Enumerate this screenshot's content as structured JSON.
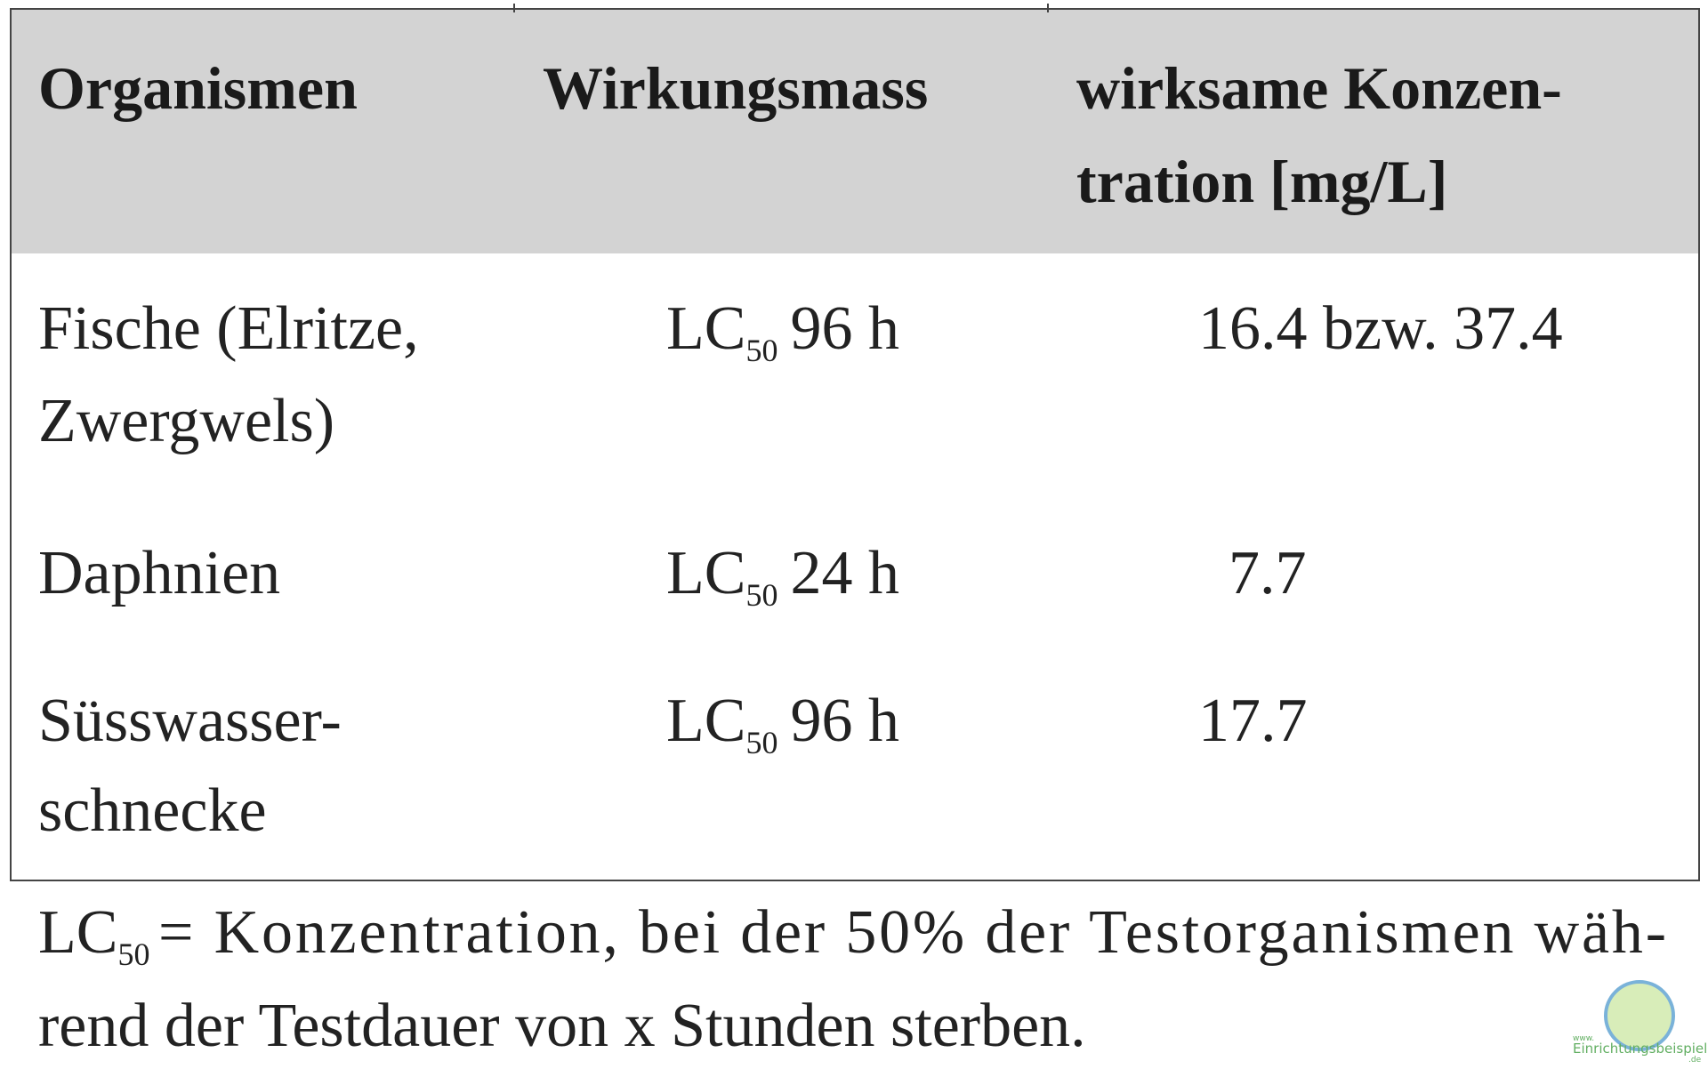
{
  "table": {
    "header": [
      [
        "Organismen"
      ],
      [
        "Wirkungsmass"
      ],
      [
        "wirksame Konzen-",
        "tration [mg/L]"
      ]
    ],
    "rows": [
      {
        "organism": [
          "Fische (Elritze,",
          "Zwergwels)"
        ],
        "measure": {
          "base": "LC",
          "sub": "50",
          "rest": "96 h"
        },
        "concentration": "16.4 bzw. 37.4"
      },
      {
        "organism": [
          "Daphnien"
        ],
        "measure": {
          "base": "LC",
          "sub": "50",
          "rest": "24 h"
        },
        "concentration": "7.7"
      },
      {
        "organism": [
          "Süsswasser-",
          "schnecke"
        ],
        "measure": {
          "base": "LC",
          "sub": "50",
          "rest": "96 h"
        },
        "concentration": "17.7"
      }
    ]
  },
  "footnote": {
    "base": "LC",
    "sub": "50",
    "lines": [
      "= Konzentration, bei der 50% der Testorganismen wäh-",
      "rend der Testdauer von x Stunden sterben."
    ]
  },
  "watermark": {
    "prefix": "www.",
    "name": "Einrichtungsbeispiele",
    "suffix": ".de"
  }
}
